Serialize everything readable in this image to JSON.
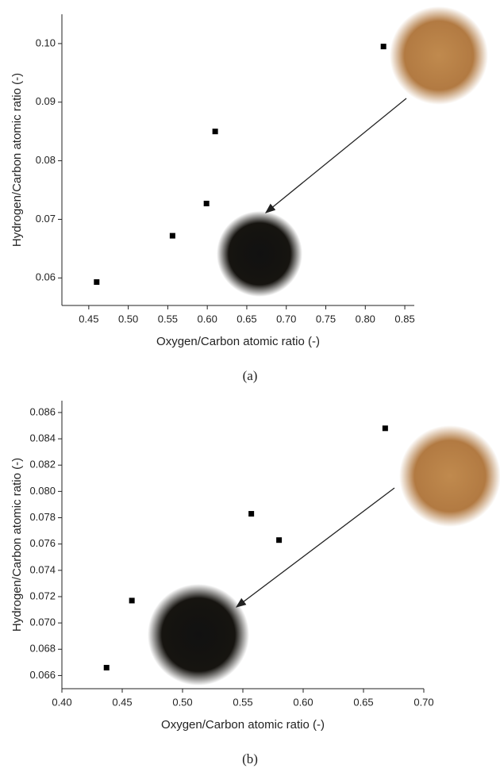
{
  "chart_data": [
    {
      "type": "scatter",
      "caption": "(a)",
      "x_label": "Oxygen/Carbon atomic ratio (-)",
      "y_label": "Hydrogen/Carbon atomic ratio (-)",
      "x": [
        0.46,
        0.556,
        0.599,
        0.61,
        0.823
      ],
      "values": [
        0.0593,
        0.0672,
        0.0727,
        0.085,
        0.0995
      ],
      "color": "#000000",
      "xlim": [
        0.416,
        0.862
      ],
      "ylim": [
        0.0553,
        0.105
      ],
      "xticks": [
        0.45,
        {
          "value": 0.5,
          "label": "0.50"
        },
        0.55,
        {
          "value": 0.6,
          "label": "0.60"
        },
        0.65,
        {
          "value": 0.7,
          "label": "0.70"
        },
        0.75,
        {
          "value": 0.8,
          "label": "0.80"
        },
        0.85
      ],
      "yticks": [
        0.06,
        0.07,
        0.08,
        0.09,
        {
          "value": 0.1,
          "label": "0.10"
        }
      ]
    },
    {
      "type": "scatter",
      "caption": "(b)",
      "x_label": "Oxygen/Carbon atomic ratio (-)",
      "y_label": "Hydrogen/Carbon atomic ratio (-)",
      "x": [
        0.437,
        0.458,
        0.557,
        0.58,
        0.668
      ],
      "values": [
        0.0666,
        0.0717,
        0.0783,
        0.0763,
        0.0848
      ],
      "color": "#000000",
      "xlim": [
        0.4,
        0.7
      ],
      "ylim": [
        0.065,
        0.0869
      ],
      "xticks": [
        {
          "value": 0.4,
          "label": "0.40"
        },
        0.45,
        {
          "value": 0.5,
          "label": "0.50"
        },
        0.55,
        {
          "value": 0.6,
          "label": "0.60"
        },
        0.65,
        {
          "value": 0.7,
          "label": "0.70"
        }
      ],
      "yticks": [
        0.066,
        0.068,
        {
          "value": 0.07,
          "label": "0.070"
        },
        0.072,
        0.074,
        0.076,
        0.078,
        {
          "value": 0.08,
          "label": "0.080"
        },
        0.082,
        0.084,
        0.086
      ]
    }
  ]
}
